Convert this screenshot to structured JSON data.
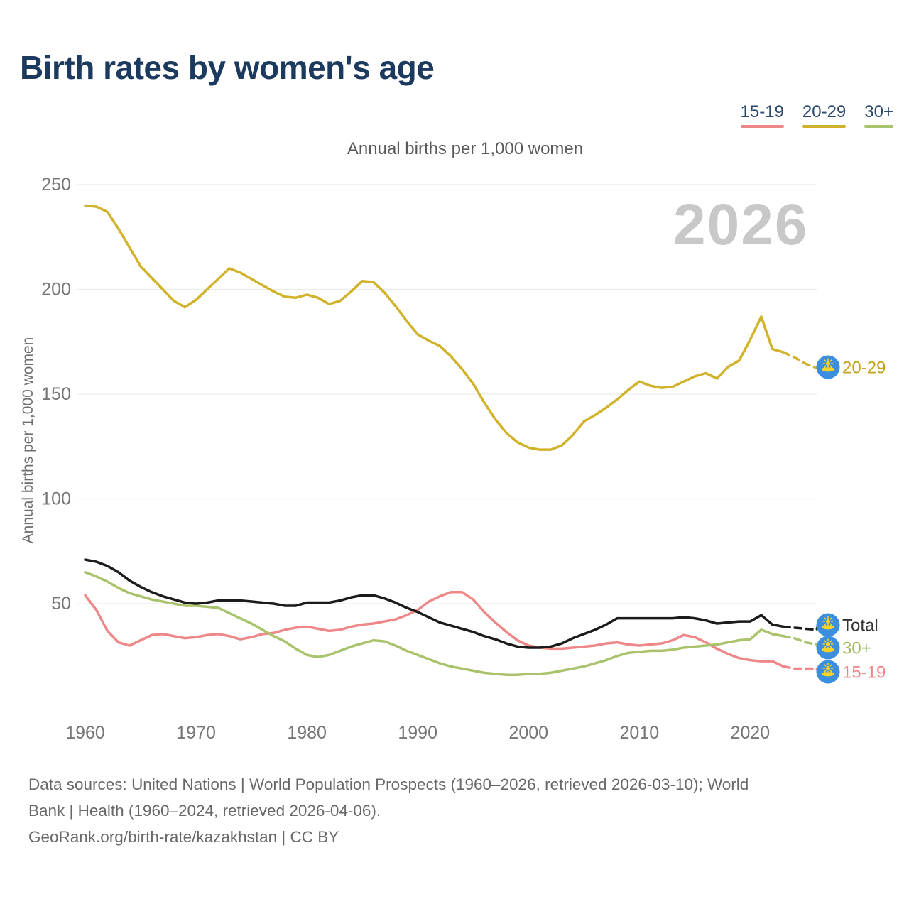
{
  "header": {
    "title": "Birth rates by women's age"
  },
  "legend": {
    "items": [
      {
        "label": "15-19",
        "color": "#ee8888"
      },
      {
        "label": "20-29",
        "color": "#d1b32b"
      },
      {
        "label": "30+",
        "color": "#a8c36b"
      }
    ]
  },
  "subtitle": "Annual births per 1,000 women",
  "y_axis_title": "Annual births per 1,000 women",
  "watermark_year": "2026",
  "chart_data": {
    "type": "line",
    "title": "Annual births per 1,000 women",
    "xlabel": "",
    "ylabel": "Annual births per 1,000 women",
    "ylim": [
      0,
      260
    ],
    "yticks": [
      50,
      100,
      150,
      200,
      250
    ],
    "xticks": [
      1960,
      1970,
      1980,
      1990,
      2000,
      2010,
      2020
    ],
    "x_start": 1960,
    "x_end": 2026,
    "x_step": 1,
    "grid": "horizontal",
    "legend_position": "top-right",
    "projection_start_year": 2023,
    "series": [
      {
        "name": "20-29",
        "color": "#d1b32b",
        "label_color": "#c2a41c",
        "values": [
          240,
          239.5,
          237,
          229,
          220,
          211,
          205.5,
          200,
          194.5,
          191.5,
          195,
          200,
          205,
          210,
          208,
          205,
          202,
          199,
          196.5,
          196,
          197.5,
          196,
          193,
          194.5,
          199,
          204,
          203.5,
          198.5,
          192,
          185,
          178.5,
          175.5,
          173,
          168,
          162,
          155,
          146,
          138,
          131.5,
          127,
          124.5,
          123.5,
          123.5,
          125.5,
          130.5,
          137,
          140,
          143.5,
          147.5,
          152,
          156,
          154,
          153,
          153.5,
          156,
          158.5,
          160,
          157.5,
          163,
          166,
          176,
          187,
          171.5,
          170,
          167.5,
          164.5,
          162.5
        ]
      },
      {
        "name": "Total",
        "color": "#1b1b1b",
        "label_color": "#333333",
        "values": [
          71,
          70,
          68,
          65,
          61,
          58,
          55.5,
          53.5,
          52,
          50.5,
          50,
          50.5,
          51.5,
          51.5,
          51.5,
          51,
          50.5,
          50,
          49,
          49,
          50.5,
          50.5,
          50.5,
          51.5,
          53,
          54,
          54,
          52.5,
          50.5,
          48,
          46,
          43.5,
          41,
          39.5,
          38,
          36.5,
          34.5,
          33,
          31,
          29.5,
          29,
          29,
          29.5,
          31,
          33.5,
          35.5,
          37.5,
          40,
          43,
          43,
          43,
          43,
          43,
          43,
          43.5,
          43,
          42,
          40.5,
          41,
          41.5,
          41.5,
          44.5,
          40,
          39,
          38.5,
          38,
          37.5
        ]
      },
      {
        "name": "30+",
        "color": "#a8c36b",
        "label_color": "#9fbd5e",
        "values": [
          65,
          63,
          60.5,
          57.5,
          55,
          53.5,
          52,
          51,
          50,
          49,
          49,
          48.5,
          48,
          45.5,
          43,
          40.5,
          37.5,
          34.5,
          32,
          28.5,
          25.5,
          24.5,
          25.5,
          27.5,
          29.5,
          31,
          32.5,
          32,
          30,
          27.5,
          25.5,
          23.5,
          21.5,
          20,
          19,
          18,
          17,
          16.5,
          16,
          16,
          16.5,
          16.5,
          17,
          18,
          19,
          20,
          21.5,
          23,
          25,
          26.5,
          27,
          27.5,
          27.5,
          28,
          29,
          29.5,
          30,
          30.5,
          31.5,
          32.5,
          33,
          37.5,
          35.5,
          34.5,
          33.5,
          31.5,
          30.5
        ]
      },
      {
        "name": "15-19",
        "color": "#ee8888",
        "label_color": "#ee8888",
        "values": [
          54,
          47,
          37,
          31.5,
          30,
          32.5,
          35,
          35.5,
          34.5,
          33.5,
          34,
          35,
          35.5,
          34.5,
          33,
          34,
          35.5,
          36,
          37.5,
          38.5,
          39,
          38,
          37,
          37.5,
          39,
          40,
          40.5,
          41.5,
          42.5,
          44.5,
          47,
          51,
          53.5,
          55.5,
          55.5,
          52,
          46,
          41,
          36.5,
          32.5,
          30,
          29,
          28.5,
          28.5,
          29,
          29.5,
          30,
          31,
          31.5,
          30.5,
          30,
          30.5,
          31,
          32.5,
          35,
          34,
          31.5,
          28.5,
          26,
          24,
          23,
          22.5,
          22.5,
          20,
          19,
          19,
          19
        ]
      }
    ],
    "end_labels": [
      "20-29",
      "Total",
      "30+",
      "15-19"
    ]
  },
  "flag": {
    "name": "kazakhstan-flag",
    "circle_color": "#3c8ede",
    "emblem_color": "#f8d327"
  },
  "footer": {
    "lines": [
      "Data sources: United Nations | World Population Prospects (1960–2026, retrieved 2026-03-10); World",
      "Bank | Health (1960–2024, retrieved 2026-04-06).",
      "GeoRank.org/birth-rate/kazakhstan | CC BY"
    ]
  }
}
